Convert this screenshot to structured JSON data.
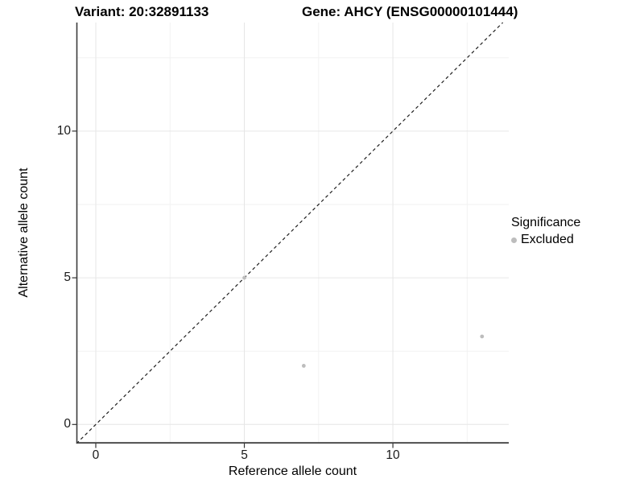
{
  "header": {
    "variant_title": "Variant: 20:32891133",
    "gene_title": "Gene: AHCY (ENSG00000101444)"
  },
  "axes": {
    "x_label": "Reference allele count",
    "y_label": "Alternative allele count",
    "x_ticks": [
      "0",
      "5",
      "10"
    ],
    "y_ticks": [
      "0",
      "5",
      "10"
    ]
  },
  "legend": {
    "title": "Significance",
    "items": [
      {
        "label": "Excluded",
        "color": "#bdbdbd"
      }
    ]
  },
  "chart_data": {
    "type": "scatter",
    "title_left": "Variant: 20:32891133",
    "title_right": "Gene: AHCY (ENSG00000101444)",
    "xlabel": "Reference allele count",
    "ylabel": "Alternative allele count",
    "xlim": [
      -0.65,
      13.9
    ],
    "ylim": [
      -0.65,
      13.7
    ],
    "x_ticks": [
      0,
      5,
      10
    ],
    "y_ticks": [
      0,
      5,
      10
    ],
    "x_minor_gridlines": [
      2.5,
      7.5,
      12.5
    ],
    "y_minor_gridlines": [
      2.5,
      7.5,
      12.5
    ],
    "grid": true,
    "legend_position": "right",
    "series": [
      {
        "name": "Excluded",
        "color": "#bdbdbd",
        "points": [
          {
            "x": 5,
            "y": 5
          },
          {
            "x": 7,
            "y": 2
          },
          {
            "x": 13,
            "y": 3
          }
        ]
      }
    ],
    "reference_line": {
      "type": "identity",
      "slope": 1,
      "intercept": 0,
      "style": "dashed",
      "color": "#1f1f1f"
    }
  },
  "colors": {
    "background": "#ffffff",
    "major_grid": "#e6e6e6",
    "minor_grid": "#f2f2f2",
    "axis_line": "#3c3c3c",
    "tick_mark": "#333333",
    "point": "#bdbdbd",
    "text": "#000000"
  }
}
